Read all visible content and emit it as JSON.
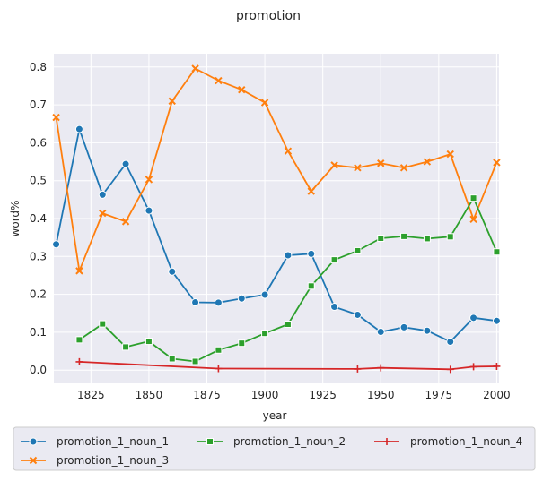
{
  "chart_data": {
    "type": "line",
    "title": "promotion",
    "xlabel": "year",
    "ylabel": "word%",
    "xlim": [
      1809,
      2001
    ],
    "ylim": [
      -0.035,
      0.835
    ],
    "x_ticks": [
      1825,
      1850,
      1875,
      1900,
      1925,
      1950,
      1975,
      2000
    ],
    "y_ticks": [
      0.0,
      0.1,
      0.2,
      0.3,
      0.4,
      0.5,
      0.6,
      0.7,
      0.8
    ],
    "grid": true,
    "legend_position": "bottom",
    "series": [
      {
        "name": "promotion_1_noun_1",
        "color": "#1f77b4",
        "marker": "circle",
        "points": [
          [
            1810,
            0.332
          ],
          [
            1820,
            0.636
          ],
          [
            1830,
            0.463
          ],
          [
            1840,
            0.544
          ],
          [
            1850,
            0.421
          ],
          [
            1860,
            0.26
          ],
          [
            1870,
            0.179
          ],
          [
            1880,
            0.178
          ],
          [
            1890,
            0.189
          ],
          [
            1900,
            0.199
          ],
          [
            1910,
            0.303
          ],
          [
            1920,
            0.307
          ],
          [
            1930,
            0.167
          ],
          [
            1940,
            0.146
          ],
          [
            1950,
            0.101
          ],
          [
            1960,
            0.113
          ],
          [
            1970,
            0.104
          ],
          [
            1980,
            0.075
          ],
          [
            1990,
            0.138
          ],
          [
            2000,
            0.13
          ]
        ]
      },
      {
        "name": "promotion_1_noun_3",
        "color": "#ff7f0e",
        "marker": "x",
        "points": [
          [
            1810,
            0.667
          ],
          [
            1820,
            0.262
          ],
          [
            1830,
            0.414
          ],
          [
            1840,
            0.392
          ],
          [
            1850,
            0.503
          ],
          [
            1860,
            0.71
          ],
          [
            1870,
            0.796
          ],
          [
            1880,
            0.764
          ],
          [
            1890,
            0.74
          ],
          [
            1900,
            0.706
          ],
          [
            1910,
            0.578
          ],
          [
            1920,
            0.472
          ],
          [
            1930,
            0.541
          ],
          [
            1940,
            0.534
          ],
          [
            1950,
            0.546
          ],
          [
            1960,
            0.534
          ],
          [
            1970,
            0.55
          ],
          [
            1980,
            0.57
          ],
          [
            1990,
            0.398
          ],
          [
            2000,
            0.548
          ]
        ]
      },
      {
        "name": "promotion_1_noun_2",
        "color": "#2ca02c",
        "marker": "square",
        "points": [
          [
            1820,
            0.08
          ],
          [
            1830,
            0.122
          ],
          [
            1840,
            0.061
          ],
          [
            1850,
            0.076
          ],
          [
            1860,
            0.03
          ],
          [
            1870,
            0.023
          ],
          [
            1880,
            0.053
          ],
          [
            1890,
            0.071
          ],
          [
            1900,
            0.097
          ],
          [
            1910,
            0.121
          ],
          [
            1920,
            0.222
          ],
          [
            1930,
            0.291
          ],
          [
            1940,
            0.315
          ],
          [
            1950,
            0.348
          ],
          [
            1960,
            0.353
          ],
          [
            1970,
            0.347
          ],
          [
            1980,
            0.352
          ],
          [
            1990,
            0.454
          ],
          [
            2000,
            0.312
          ]
        ]
      },
      {
        "name": "promotion_1_noun_4",
        "color": "#d62728",
        "marker": "plus",
        "points": [
          [
            1820,
            0.022
          ],
          [
            1880,
            0.004
          ],
          [
            1940,
            0.003
          ],
          [
            1950,
            0.006
          ],
          [
            1980,
            0.002
          ],
          [
            1990,
            0.009
          ],
          [
            2000,
            0.01
          ]
        ]
      }
    ],
    "legend_order": [
      0,
      2,
      3,
      1
    ]
  }
}
